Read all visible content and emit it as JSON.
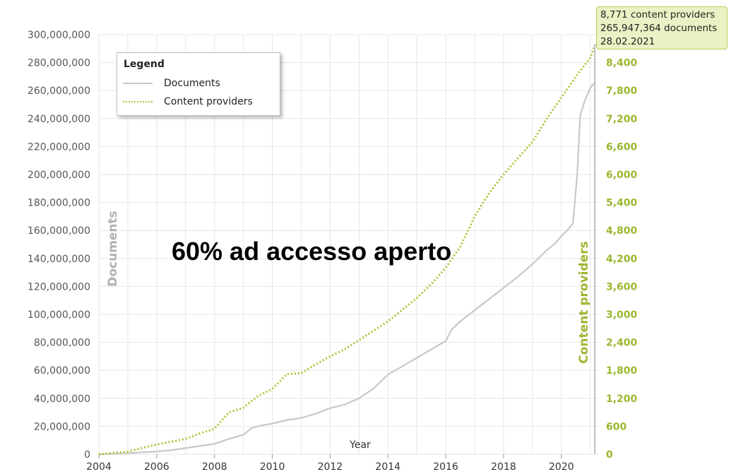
{
  "chart_data": {
    "type": "line",
    "xlabel": "Year",
    "ylabel_left": "Documents",
    "ylabel_right": "Content providers",
    "x_ticks": [
      "2004",
      "2006",
      "2008",
      "2010",
      "2012",
      "2014",
      "2016",
      "2018",
      "2020"
    ],
    "y_left_ticks": [
      "0",
      "20,000,000",
      "40,000,000",
      "60,000,000",
      "80,000,000",
      "100,000,000",
      "120,000,000",
      "140,000,000",
      "160,000,000",
      "180,000,000",
      "200,000,000",
      "220,000,000",
      "240,000,000",
      "260,000,000",
      "280,000,000",
      "300,000,000"
    ],
    "y_right_ticks": [
      "0",
      "600",
      "1,200",
      "1,800",
      "2,400",
      "3,000",
      "3,600",
      "4,200",
      "4,800",
      "5,400",
      "6,000",
      "6,600",
      "7,200",
      "7,800",
      "8,400"
    ],
    "xlim": [
      2004,
      2021.3
    ],
    "ylim_left": [
      0,
      300000000
    ],
    "ylim_right": [
      0,
      9000
    ],
    "grid": true,
    "legend": {
      "title": "Legend",
      "position": "top-left",
      "entries": [
        "Documents",
        "Content providers"
      ]
    },
    "series": [
      {
        "name": "Documents",
        "axis": "left",
        "color": "#c8c8c8",
        "style": "solid",
        "points": [
          [
            2004,
            0
          ],
          [
            2005,
            800000
          ],
          [
            2006,
            2000000
          ],
          [
            2006.5,
            3000000
          ],
          [
            2007,
            4500000
          ],
          [
            2007.5,
            6000000
          ],
          [
            2008,
            7500000
          ],
          [
            2008.5,
            11000000
          ],
          [
            2009,
            14000000
          ],
          [
            2009.3,
            19000000
          ],
          [
            2009.7,
            21000000
          ],
          [
            2010,
            22000000
          ],
          [
            2010.5,
            24500000
          ],
          [
            2011,
            26000000
          ],
          [
            2011.5,
            29000000
          ],
          [
            2012,
            33000000
          ],
          [
            2012.5,
            35500000
          ],
          [
            2013,
            40000000
          ],
          [
            2013.5,
            47000000
          ],
          [
            2014,
            57000000
          ],
          [
            2014.5,
            63000000
          ],
          [
            2015,
            69000000
          ],
          [
            2015.5,
            75000000
          ],
          [
            2016,
            81000000
          ],
          [
            2016.2,
            89000000
          ],
          [
            2016.5,
            95000000
          ],
          [
            2017,
            103000000
          ],
          [
            2017.5,
            111000000
          ],
          [
            2018,
            119000000
          ],
          [
            2018.5,
            127000000
          ],
          [
            2019,
            136000000
          ],
          [
            2019.5,
            146000000
          ],
          [
            2019.8,
            151000000
          ],
          [
            2020,
            156000000
          ],
          [
            2020.2,
            160000000
          ],
          [
            2020.4,
            165000000
          ],
          [
            2020.55,
            200000000
          ],
          [
            2020.65,
            242000000
          ],
          [
            2020.8,
            252000000
          ],
          [
            2021,
            262000000
          ],
          [
            2021.16,
            265947364
          ]
        ]
      },
      {
        "name": "Content providers",
        "axis": "right",
        "color": "#a8c634",
        "style": "dotted",
        "points": [
          [
            2004,
            0
          ],
          [
            2005,
            60
          ],
          [
            2006,
            210
          ],
          [
            2007,
            330
          ],
          [
            2007.5,
            450
          ],
          [
            2008,
            550
          ],
          [
            2008.5,
            900
          ],
          [
            2009,
            1000
          ],
          [
            2009.5,
            1250
          ],
          [
            2010,
            1400
          ],
          [
            2010.5,
            1720
          ],
          [
            2011,
            1740
          ],
          [
            2011.5,
            1930
          ],
          [
            2012,
            2100
          ],
          [
            2012.5,
            2250
          ],
          [
            2013,
            2450
          ],
          [
            2013.5,
            2650
          ],
          [
            2014,
            2850
          ],
          [
            2014.5,
            3100
          ],
          [
            2015,
            3350
          ],
          [
            2015.5,
            3650
          ],
          [
            2016,
            4000
          ],
          [
            2016.5,
            4450
          ],
          [
            2017,
            5100
          ],
          [
            2017.5,
            5600
          ],
          [
            2018,
            6000
          ],
          [
            2018.5,
            6350
          ],
          [
            2019,
            6700
          ],
          [
            2019.5,
            7200
          ],
          [
            2020,
            7650
          ],
          [
            2020.5,
            8100
          ],
          [
            2021,
            8500
          ],
          [
            2021.16,
            8771
          ]
        ]
      }
    ]
  },
  "tooltip": {
    "line1": "8,771 content providers",
    "line2": "265,947,364 documents",
    "line3": "28.02.2021"
  },
  "overlay_text": "60% ad accesso aperto",
  "colors": {
    "documents": "#c8c8c8",
    "content_providers": "#a8c634",
    "right_axis_text": "#9ab82e",
    "grid": "#e6e6e6"
  }
}
